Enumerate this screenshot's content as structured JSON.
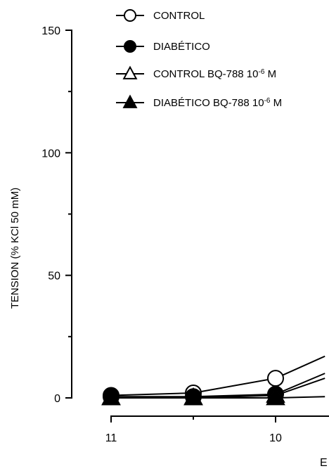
{
  "chart_data": {
    "type": "line",
    "title": "",
    "ylabel": "TENSION (% KCl 50 mM)",
    "xlabel": "E",
    "ylim": [
      0,
      150
    ],
    "y_ticks": [
      0,
      50,
      100,
      150
    ],
    "y_tick_labels": [
      "0",
      "50",
      "100",
      "150"
    ],
    "x_ticks": [
      11,
      10
    ],
    "x_tick_labels": [
      "11",
      "10"
    ],
    "x_reversed": true,
    "grid": false,
    "legend_placement": "top-left",
    "series": [
      {
        "name": "CONTROL",
        "name_superscript": "",
        "name_suffix": "",
        "marker": "circle-open",
        "x": [
          11,
          10.5,
          10,
          9.7
        ],
        "values": [
          1,
          2,
          8,
          17
        ]
      },
      {
        "name": "DIABÉTICO",
        "name_superscript": "",
        "name_suffix": "",
        "marker": "circle-filled",
        "x": [
          11,
          10.5,
          10,
          9.7
        ],
        "values": [
          0.5,
          0.5,
          1.5,
          10
        ]
      },
      {
        "name": "CONTROL BQ-788 10",
        "name_superscript": "-6",
        "name_suffix": " M",
        "marker": "triangle-open",
        "x": [
          11,
          10.5,
          10,
          9.7
        ],
        "values": [
          0,
          0,
          1,
          8
        ]
      },
      {
        "name": "DIABÉTICO BQ-788 10",
        "name_superscript": "-6",
        "name_suffix": " M",
        "marker": "triangle-filled",
        "x": [
          11,
          10.5,
          10,
          9.7
        ],
        "values": [
          0,
          0,
          0,
          0.5
        ]
      }
    ]
  }
}
